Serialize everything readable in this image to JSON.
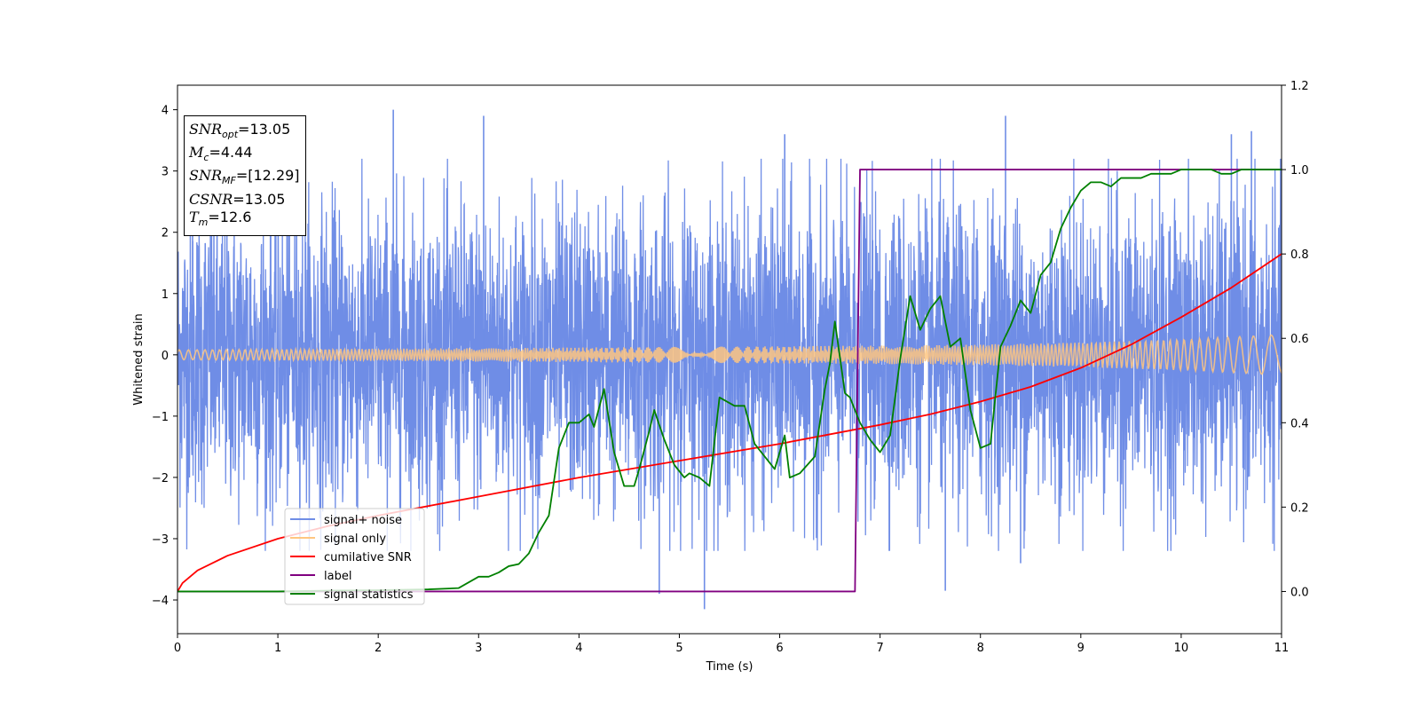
{
  "chart_data": {
    "type": "line",
    "xlabel": "Time (s)",
    "ylabel": "Whitened strain",
    "xlim": [
      0,
      11
    ],
    "ylim_left": [
      -4.55,
      4.4
    ],
    "ylim_right": [
      -0.1,
      1.2
    ],
    "xticks": [
      0,
      1,
      2,
      3,
      4,
      5,
      6,
      7,
      8,
      9,
      10,
      11
    ],
    "yticks_left": [
      -4,
      -3,
      -2,
      -1,
      0,
      1,
      2,
      3,
      4
    ],
    "yticks_right": [
      0.0,
      0.2,
      0.4,
      0.6,
      0.8,
      1.0,
      1.2
    ],
    "yticks_right_labels": [
      "0.0",
      "0.2",
      "0.4",
      "0.6",
      "0.8",
      "1.0",
      "1.2"
    ],
    "legend_placement": "lower-left",
    "legend": [
      {
        "label": "signal+ noise",
        "color": "#6f8de6"
      },
      {
        "label": "signal only",
        "color": "#ffc680"
      },
      {
        "label": "cumilative SNR",
        "color": "#ff0000"
      },
      {
        "label": "label",
        "color": "#800080"
      },
      {
        "label": "signal statistics",
        "color": "#008000"
      }
    ],
    "annotation": {
      "snr_opt": "=13.05",
      "mc": "=4.44",
      "snr_mf": "=[12.29]",
      "csnr": "=13.05",
      "tm": "=12.6"
    },
    "series": [
      {
        "name": "signal+ noise",
        "axis": "left",
        "kind": "noise-band",
        "color": "#6f8de6",
        "x_range": [
          0,
          11
        ],
        "typical_amplitude": 2.2,
        "peak_x": [
          0.15,
          2.15,
          3.05,
          4.8,
          5.25,
          6.05,
          7.65,
          8.25,
          8.4,
          10.5,
          10.7
        ],
        "peak_y": [
          3.5,
          4.0,
          3.9,
          -3.9,
          -4.15,
          3.6,
          -3.85,
          3.9,
          -3.4,
          3.6,
          3.65
        ]
      },
      {
        "name": "signal only",
        "axis": "left",
        "kind": "chirp-envelope",
        "color": "#ffc680",
        "x": [
          0,
          1,
          2,
          3,
          4,
          5,
          6,
          7,
          8,
          9,
          10,
          11
        ],
        "amplitude": [
          0.08,
          0.09,
          0.1,
          0.11,
          0.12,
          0.13,
          0.14,
          0.15,
          0.17,
          0.2,
          0.25,
          0.33
        ]
      },
      {
        "name": "cumilative SNR",
        "axis": "right",
        "color": "#ff0000",
        "x": [
          0,
          0.05,
          0.2,
          0.5,
          1,
          1.5,
          2,
          3,
          4,
          5,
          6,
          7,
          7.5,
          8,
          8.5,
          9,
          9.5,
          10,
          10.5,
          11
        ],
        "y": [
          0.0,
          0.02,
          0.05,
          0.085,
          0.125,
          0.155,
          0.18,
          0.225,
          0.27,
          0.31,
          0.35,
          0.395,
          0.42,
          0.45,
          0.485,
          0.53,
          0.585,
          0.65,
          0.72,
          0.8
        ]
      },
      {
        "name": "label",
        "axis": "right",
        "color": "#800080",
        "x": [
          0,
          6.75,
          6.8,
          11
        ],
        "y": [
          0,
          0,
          1,
          1
        ]
      },
      {
        "name": "signal statistics",
        "axis": "right",
        "color": "#008000",
        "x": [
          0,
          0.5,
          1,
          1.5,
          2,
          2.5,
          2.8,
          3.0,
          3.1,
          3.2,
          3.3,
          3.4,
          3.5,
          3.6,
          3.7,
          3.8,
          3.9,
          4.0,
          4.1,
          4.15,
          4.25,
          4.35,
          4.45,
          4.55,
          4.6,
          4.7,
          4.75,
          4.85,
          4.95,
          5.05,
          5.1,
          5.2,
          5.3,
          5.4,
          5.55,
          5.65,
          5.75,
          5.85,
          5.95,
          6.05,
          6.1,
          6.2,
          6.35,
          6.45,
          6.5,
          6.55,
          6.65,
          6.7,
          6.75,
          6.8,
          6.9,
          7.0,
          7.1,
          7.2,
          7.3,
          7.4,
          7.5,
          7.6,
          7.7,
          7.8,
          7.9,
          8.0,
          8.1,
          8.2,
          8.3,
          8.4,
          8.5,
          8.6,
          8.7,
          8.8,
          8.9,
          9.0,
          9.1,
          9.2,
          9.3,
          9.4,
          9.5,
          9.6,
          9.7,
          9.8,
          9.9,
          10.0,
          10.1,
          10.2,
          10.3,
          10.4,
          10.5,
          10.6,
          10.7,
          10.8,
          10.9,
          11.0
        ],
        "y": [
          0.0,
          0.0,
          0.0,
          0.002,
          0.003,
          0.005,
          0.008,
          0.035,
          0.035,
          0.045,
          0.06,
          0.065,
          0.09,
          0.14,
          0.18,
          0.34,
          0.4,
          0.4,
          0.42,
          0.39,
          0.48,
          0.33,
          0.25,
          0.25,
          0.29,
          0.38,
          0.43,
          0.36,
          0.3,
          0.27,
          0.28,
          0.27,
          0.25,
          0.46,
          0.44,
          0.44,
          0.35,
          0.32,
          0.29,
          0.37,
          0.27,
          0.28,
          0.32,
          0.48,
          0.54,
          0.64,
          0.47,
          0.46,
          0.43,
          0.4,
          0.36,
          0.33,
          0.37,
          0.55,
          0.7,
          0.62,
          0.67,
          0.7,
          0.58,
          0.6,
          0.43,
          0.34,
          0.35,
          0.58,
          0.63,
          0.69,
          0.66,
          0.75,
          0.78,
          0.86,
          0.91,
          0.95,
          0.97,
          0.97,
          0.96,
          0.98,
          0.98,
          0.98,
          0.99,
          0.99,
          0.99,
          1.0,
          1.0,
          1.0,
          1.0,
          0.99,
          0.99,
          1.0,
          1.0,
          1.0,
          1.0,
          1.0
        ]
      }
    ]
  }
}
